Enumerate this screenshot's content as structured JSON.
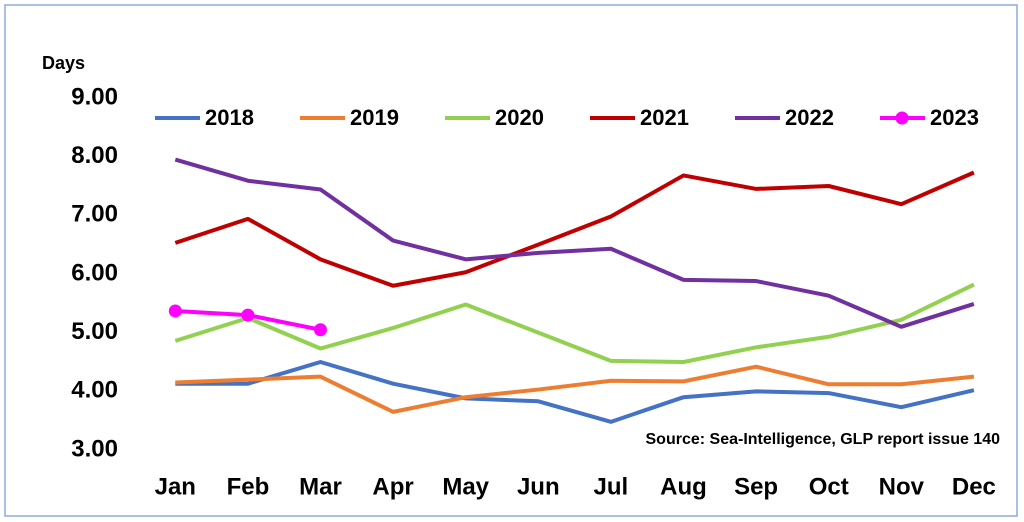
{
  "chart_data": {
    "type": "line",
    "y_label": "Days",
    "annotation": "Source: Sea-Intelligence, GLP report issue 140",
    "categories": [
      "Jan",
      "Feb",
      "Mar",
      "Apr",
      "May",
      "Jun",
      "Jul",
      "Aug",
      "Sep",
      "Oct",
      "Nov",
      "Dec"
    ],
    "series": [
      {
        "name": "2018",
        "color": "#4472c4",
        "values": [
          4.13,
          4.13,
          4.5,
          4.13,
          3.88,
          3.83,
          3.48,
          3.9,
          4.0,
          3.97,
          3.73,
          4.02
        ]
      },
      {
        "name": "2019",
        "color": "#ed7d31",
        "values": [
          4.15,
          4.2,
          4.25,
          3.65,
          3.9,
          4.03,
          4.18,
          4.17,
          4.42,
          4.12,
          4.12,
          4.25
        ]
      },
      {
        "name": "2020",
        "color": "#92d050",
        "values": [
          4.86,
          5.25,
          4.73,
          5.08,
          5.48,
          5.0,
          4.52,
          4.5,
          4.75,
          4.93,
          5.22,
          5.82
        ]
      },
      {
        "name": "2021",
        "color": "#c00000",
        "values": [
          6.53,
          6.94,
          6.25,
          5.8,
          6.03,
          6.5,
          6.98,
          7.68,
          7.45,
          7.5,
          7.19,
          7.73
        ]
      },
      {
        "name": "2022",
        "color": "#7030a0",
        "values": [
          7.95,
          7.59,
          7.44,
          6.57,
          6.25,
          6.36,
          6.43,
          5.9,
          5.88,
          5.63,
          5.1,
          5.49
        ]
      },
      {
        "name": "2023",
        "color": "#ff00ff",
        "marker": true,
        "values": [
          5.37,
          5.3,
          5.05,
          null,
          null,
          null,
          null,
          null,
          null,
          null,
          null,
          null
        ]
      }
    ],
    "ylim": [
      3,
      9
    ],
    "yticks": [
      {
        "value": 3,
        "label": "3.00"
      },
      {
        "value": 4,
        "label": "4.00"
      },
      {
        "value": 5,
        "label": "5.00"
      },
      {
        "value": 6,
        "label": "6.00"
      },
      {
        "value": 7,
        "label": "7.00"
      },
      {
        "value": 8,
        "label": "8.00"
      },
      {
        "value": 9,
        "label": "9.00"
      }
    ],
    "grid": false,
    "legend": "top"
  }
}
